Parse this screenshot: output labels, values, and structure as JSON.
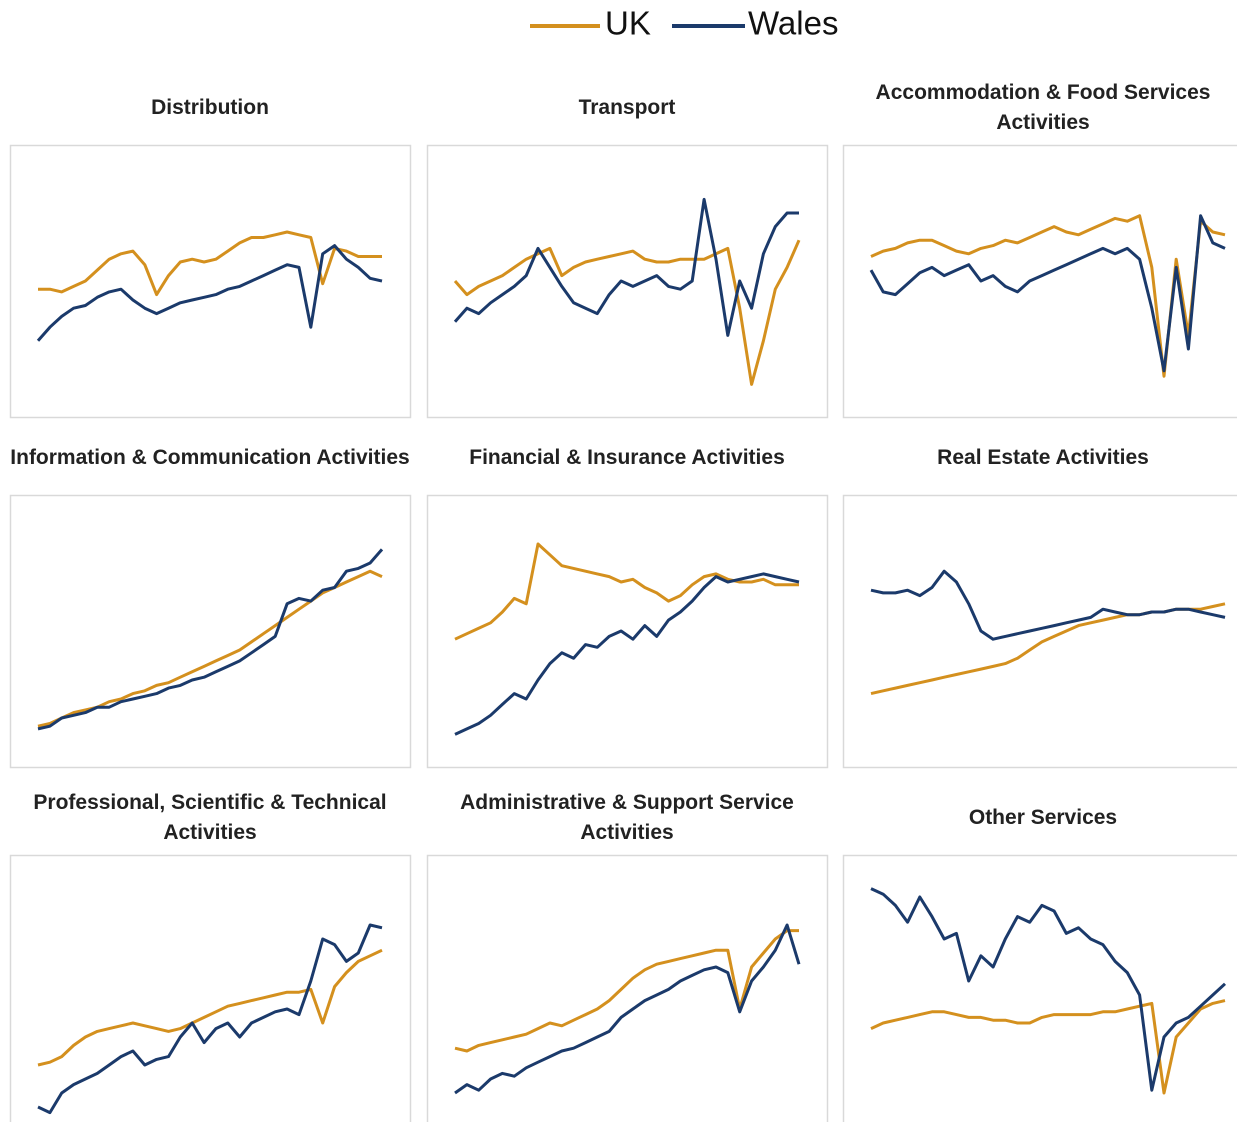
{
  "chart_data": [
    {
      "type": "line",
      "title": "Distribution",
      "ylim": [
        0,
        100
      ],
      "series": [
        {
          "name": "UK",
          "color": "#D4901E",
          "values": [
            47,
            47,
            46,
            48,
            50,
            54,
            58,
            60,
            61,
            56,
            45,
            52,
            57,
            58,
            57,
            58,
            61,
            64,
            66,
            66,
            67,
            68,
            67,
            66,
            49,
            62,
            61,
            59,
            59,
            59
          ]
        },
        {
          "name": "Wales",
          "color": "#1B3A6B",
          "values": [
            28,
            33,
            37,
            40,
            41,
            44,
            46,
            47,
            43,
            40,
            38,
            40,
            42,
            43,
            44,
            45,
            47,
            48,
            50,
            52,
            54,
            56,
            55,
            33,
            60,
            63,
            58,
            55,
            51,
            50
          ]
        }
      ]
    },
    {
      "type": "line",
      "title": "Transport",
      "ylim": [
        0,
        100
      ],
      "series": [
        {
          "name": "UK",
          "color": "#D4901E",
          "values": [
            50,
            45,
            48,
            50,
            52,
            55,
            58,
            60,
            62,
            52,
            55,
            57,
            58,
            59,
            60,
            61,
            58,
            57,
            57,
            58,
            58,
            58,
            60,
            62,
            40,
            12,
            28,
            47,
            55,
            65
          ]
        },
        {
          "name": "Wales",
          "color": "#1B3A6B",
          "values": [
            35,
            40,
            38,
            42,
            45,
            48,
            52,
            62,
            55,
            48,
            42,
            40,
            38,
            45,
            50,
            48,
            50,
            52,
            48,
            47,
            50,
            80,
            58,
            30,
            50,
            40,
            60,
            70,
            75,
            75
          ]
        }
      ]
    },
    {
      "type": "line",
      "title": "Accommodation & Food Services Activities",
      "ylim": [
        0,
        100
      ],
      "series": [
        {
          "name": "UK",
          "color": "#D4901E",
          "values": [
            59,
            61,
            62,
            64,
            65,
            65,
            63,
            61,
            60,
            62,
            63,
            65,
            64,
            66,
            68,
            70,
            68,
            67,
            69,
            71,
            73,
            72,
            74,
            55,
            15,
            58,
            30,
            72,
            68,
            67
          ]
        },
        {
          "name": "Wales",
          "color": "#1B3A6B",
          "values": [
            54,
            46,
            45,
            49,
            53,
            55,
            52,
            54,
            56,
            50,
            52,
            48,
            46,
            50,
            52,
            54,
            56,
            58,
            60,
            62,
            60,
            62,
            58,
            40,
            17,
            55,
            25,
            74,
            64,
            62
          ]
        }
      ]
    },
    {
      "type": "line",
      "title": "Information & Communication Activities",
      "ylim": [
        0,
        100
      ],
      "series": [
        {
          "name": "UK",
          "color": "#D4901E",
          "values": [
            15,
            16,
            18,
            20,
            21,
            22,
            24,
            25,
            27,
            28,
            30,
            31,
            33,
            35,
            37,
            39,
            41,
            43,
            46,
            49,
            52,
            55,
            58,
            61,
            64,
            66,
            68,
            70,
            72,
            70
          ]
        },
        {
          "name": "Wales",
          "color": "#1B3A6B",
          "values": [
            14,
            15,
            18,
            19,
            20,
            22,
            22,
            24,
            25,
            26,
            27,
            29,
            30,
            32,
            33,
            35,
            37,
            39,
            42,
            45,
            48,
            60,
            62,
            61,
            65,
            66,
            72,
            73,
            75,
            80
          ]
        }
      ]
    },
    {
      "type": "line",
      "title": "Financial & Insurance Activities",
      "ylim": [
        0,
        100
      ],
      "series": [
        {
          "name": "UK",
          "color": "#D4901E",
          "values": [
            47,
            49,
            51,
            53,
            57,
            62,
            60,
            82,
            78,
            74,
            73,
            72,
            71,
            70,
            68,
            69,
            66,
            64,
            61,
            63,
            67,
            70,
            71,
            69,
            68,
            68,
            69,
            67,
            67,
            67
          ]
        },
        {
          "name": "Wales",
          "color": "#1B3A6B",
          "values": [
            12,
            14,
            16,
            19,
            23,
            27,
            25,
            32,
            38,
            42,
            40,
            45,
            44,
            48,
            50,
            47,
            52,
            48,
            54,
            57,
            61,
            66,
            70,
            68,
            69,
            70,
            71,
            70,
            69,
            68
          ]
        }
      ]
    },
    {
      "type": "line",
      "title": "Real Estate Activities",
      "ylim": [
        0,
        100
      ],
      "series": [
        {
          "name": "UK",
          "color": "#D4901E",
          "values": [
            27,
            28,
            29,
            30,
            31,
            32,
            33,
            34,
            35,
            36,
            37,
            38,
            40,
            43,
            46,
            48,
            50,
            52,
            53,
            54,
            55,
            56,
            56,
            57,
            57,
            58,
            58,
            58,
            59,
            60
          ]
        },
        {
          "name": "Wales",
          "color": "#1B3A6B",
          "values": [
            65,
            64,
            64,
            65,
            63,
            66,
            72,
            68,
            60,
            50,
            47,
            48,
            49,
            50,
            51,
            52,
            53,
            54,
            55,
            58,
            57,
            56,
            56,
            57,
            57,
            58,
            58,
            57,
            56,
            55
          ]
        }
      ]
    },
    {
      "type": "line",
      "title": "Professional, Scientific & Technical Activities",
      "ylim": [
        0,
        100
      ],
      "series": [
        {
          "name": "UK",
          "color": "#D4901E",
          "values": [
            25,
            26,
            28,
            32,
            35,
            37,
            38,
            39,
            40,
            39,
            38,
            37,
            38,
            40,
            42,
            44,
            46,
            47,
            48,
            49,
            50,
            51,
            51,
            52,
            40,
            53,
            58,
            62,
            64,
            66
          ]
        },
        {
          "name": "Wales",
          "color": "#1B3A6B",
          "values": [
            10,
            8,
            15,
            18,
            20,
            22,
            25,
            28,
            30,
            25,
            27,
            28,
            35,
            40,
            33,
            38,
            40,
            35,
            40,
            42,
            44,
            45,
            43,
            55,
            70,
            68,
            62,
            65,
            75,
            74
          ]
        }
      ]
    },
    {
      "type": "line",
      "title": "Administrative & Support Service Activities",
      "ylim": [
        0,
        100
      ],
      "series": [
        {
          "name": "UK",
          "color": "#D4901E",
          "values": [
            31,
            30,
            32,
            33,
            34,
            35,
            36,
            38,
            40,
            39,
            41,
            43,
            45,
            48,
            52,
            56,
            59,
            61,
            62,
            63,
            64,
            65,
            66,
            66,
            45,
            60,
            65,
            70,
            73,
            73
          ]
        },
        {
          "name": "Wales",
          "color": "#1B3A6B",
          "values": [
            15,
            18,
            16,
            20,
            22,
            21,
            24,
            26,
            28,
            30,
            31,
            33,
            35,
            37,
            42,
            45,
            48,
            50,
            52,
            55,
            57,
            59,
            60,
            58,
            44,
            55,
            60,
            66,
            75,
            61
          ]
        }
      ]
    },
    {
      "type": "line",
      "title": "Other Services",
      "ylim": [
        0,
        100
      ],
      "series": [
        {
          "name": "UK",
          "color": "#D4901E",
          "values": [
            38,
            40,
            41,
            42,
            43,
            44,
            44,
            43,
            42,
            42,
            41,
            41,
            40,
            40,
            42,
            43,
            43,
            43,
            43,
            44,
            44,
            45,
            46,
            47,
            15,
            35,
            40,
            45,
            47,
            48
          ]
        },
        {
          "name": "Wales",
          "color": "#1B3A6B",
          "values": [
            88,
            86,
            82,
            76,
            85,
            78,
            70,
            72,
            55,
            64,
            60,
            70,
            78,
            76,
            82,
            80,
            72,
            74,
            70,
            68,
            62,
            58,
            50,
            16,
            35,
            40,
            42,
            46,
            50,
            54
          ]
        }
      ]
    }
  ]
}
